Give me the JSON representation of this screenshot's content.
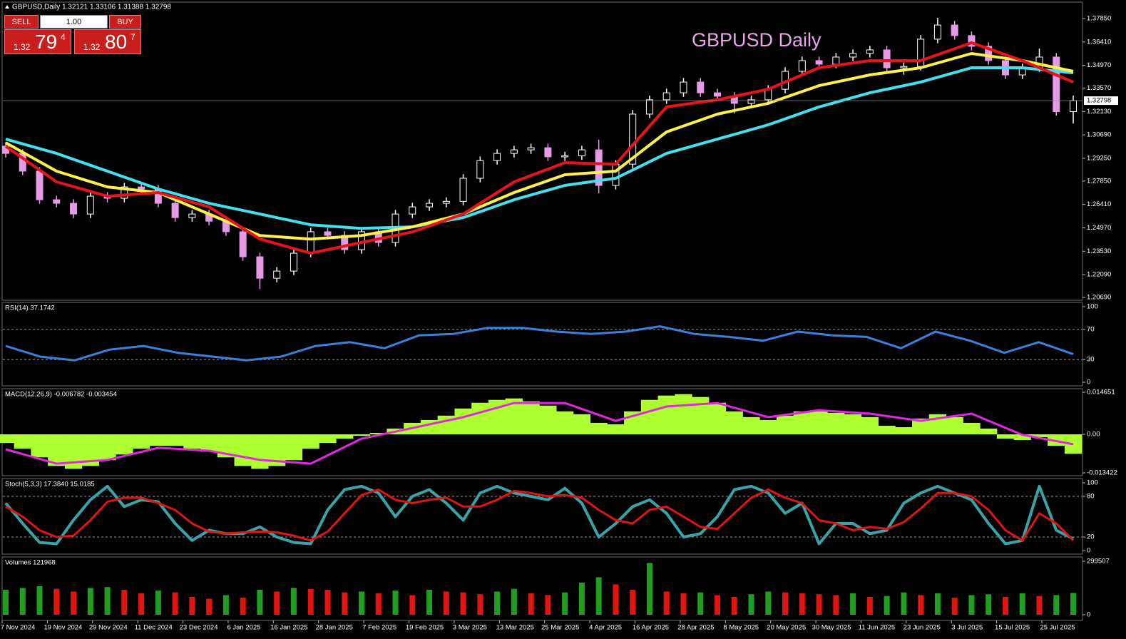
{
  "trade_panel": {
    "sell": "SELL",
    "buy": "BUY",
    "lots": "1.00",
    "sell_price": {
      "big": "1.32",
      "main": "79",
      "small": "4"
    },
    "buy_price": {
      "big": "1.32",
      "main": "80",
      "small": "7"
    }
  },
  "time_axis": {
    "labels": [
      "7 Nov 2024",
      "19 Nov 2024",
      "29 Nov 2024",
      "11 Dec 2024",
      "23 Dec 2024",
      "6 Jan 2025",
      "16 Jan 2025",
      "28 Jan 2025",
      "7 Feb 2025",
      "19 Feb 2025",
      "3 Mar 2025",
      "13 Mar 2025",
      "25 Mar 2025",
      "4 Apr 2025",
      "16 Apr 2025",
      "28 Apr 2025",
      "8 May 2025",
      "20 May 2025",
      "30 May 2025",
      "11 Jun 2025",
      "23 Jun 2025",
      "3 Jul 2025",
      "15 Jul 2025",
      "25 Jul 2025"
    ]
  },
  "chart_data": [
    {
      "type": "candlestick",
      "title": "GBPUSD,Daily  1.32121 1.33106 1.31388 1.32798",
      "annotation": "GBPUSD Daily",
      "up_color": "#ffffff",
      "down_color": "#e59be5",
      "open": [
        1.3,
        1.2955,
        1.2846,
        1.267,
        1.2648,
        1.2582,
        1.2692,
        1.2679,
        1.2749,
        1.2736,
        1.2648,
        1.256,
        1.2582,
        1.2538,
        1.2473,
        1.2319,
        1.2187,
        1.2231,
        1.2341,
        1.2473,
        1.2451,
        1.2363,
        1.2473,
        1.2407,
        1.2582,
        1.2626,
        1.2648,
        1.266,
        1.2802,
        1.2911,
        1.2955,
        1.2977,
        1.299,
        1.2934,
        1.294,
        1.2977,
        1.2758,
        1.2889,
        1.3197,
        1.3285,
        1.3328,
        1.3394,
        1.3328,
        1.3307,
        1.3263,
        1.3285,
        1.335,
        1.346,
        1.3526,
        1.3504,
        1.3548,
        1.357,
        1.3592,
        1.3482,
        1.349,
        1.3658,
        1.3745,
        1.368,
        1.3614,
        1.3526,
        1.3438,
        1.3482,
        1.3548,
        1.32121
      ],
      "high": [
        1.3025,
        1.298,
        1.2871,
        1.2695,
        1.2673,
        1.2717,
        1.2717,
        1.2774,
        1.2774,
        1.2761,
        1.2673,
        1.2607,
        1.2607,
        1.2563,
        1.2498,
        1.2344,
        1.2256,
        1.2366,
        1.2498,
        1.2498,
        1.2476,
        1.2498,
        1.2498,
        1.2607,
        1.2651,
        1.2673,
        1.2685,
        1.2827,
        1.2936,
        1.298,
        1.3002,
        1.3015,
        1.3015,
        1.2965,
        1.3002,
        1.304,
        1.2914,
        1.3222,
        1.331,
        1.3353,
        1.3419,
        1.3419,
        1.3353,
        1.3332,
        1.331,
        1.3375,
        1.3485,
        1.3551,
        1.3551,
        1.3573,
        1.3595,
        1.3617,
        1.3617,
        1.3515,
        1.3683,
        1.379,
        1.377,
        1.3705,
        1.3639,
        1.3551,
        1.3507,
        1.36,
        1.3573,
        1.33106
      ],
      "low": [
        1.293,
        1.2821,
        1.2645,
        1.2623,
        1.2557,
        1.2557,
        1.2654,
        1.2654,
        1.2711,
        1.2623,
        1.2535,
        1.2535,
        1.2513,
        1.2448,
        1.2294,
        1.212,
        1.2162,
        1.2206,
        1.2316,
        1.2426,
        1.2338,
        1.2338,
        1.2382,
        1.2382,
        1.2557,
        1.2601,
        1.2623,
        1.2635,
        1.2777,
        1.2886,
        1.293,
        1.2952,
        1.2909,
        1.2909,
        1.2915,
        1.271,
        1.2733,
        1.2864,
        1.3172,
        1.326,
        1.3303,
        1.3303,
        1.3282,
        1.32,
        1.3238,
        1.326,
        1.3325,
        1.3435,
        1.3479,
        1.3479,
        1.3523,
        1.3545,
        1.3457,
        1.344,
        1.3465,
        1.3633,
        1.3655,
        1.3589,
        1.3501,
        1.3413,
        1.3413,
        1.3457,
        1.3187,
        1.31388
      ],
      "close": [
        1.2955,
        1.2846,
        1.267,
        1.2648,
        1.2582,
        1.2692,
        1.2679,
        1.2749,
        1.2736,
        1.2648,
        1.256,
        1.2582,
        1.2538,
        1.2473,
        1.2319,
        1.2187,
        1.2231,
        1.2341,
        1.2473,
        1.2451,
        1.2363,
        1.2473,
        1.2407,
        1.2582,
        1.2626,
        1.2648,
        1.266,
        1.2802,
        1.2911,
        1.2955,
        1.2977,
        1.299,
        1.2934,
        1.294,
        1.2977,
        1.2758,
        1.2889,
        1.3197,
        1.3285,
        1.3328,
        1.3394,
        1.3328,
        1.3307,
        1.3263,
        1.3285,
        1.335,
        1.346,
        1.3526,
        1.3504,
        1.3548,
        1.357,
        1.3592,
        1.3482,
        1.349,
        1.3658,
        1.3745,
        1.368,
        1.3614,
        1.3526,
        1.3438,
        1.3482,
        1.3548,
        1.32121,
        1.32798
      ],
      "moving_averages": [
        {
          "color": "#43e0f0",
          "values": [
            1.3043,
            1.2955,
            1.2846,
            1.2736,
            1.2648,
            1.2582,
            1.2516,
            1.2494,
            1.2503,
            1.256,
            1.267,
            1.2758,
            1.2802,
            1.2955,
            1.3043,
            1.3131,
            1.3241,
            1.3328,
            1.3394,
            1.3482,
            1.3482,
            1.3451
          ]
        },
        {
          "color": "#fff04a",
          "values": [
            1.3021,
            1.2846,
            1.2749,
            1.2714,
            1.2582,
            1.245,
            1.2428,
            1.245,
            1.2503,
            1.2582,
            1.2714,
            1.2824,
            1.2846,
            1.3087,
            1.3197,
            1.3263,
            1.3372,
            1.3438,
            1.3482,
            1.357,
            1.3526,
            1.346
          ]
        },
        {
          "color": "#e8121a",
          "values": [
            1.2999,
            1.278,
            1.2692,
            1.2714,
            1.2626,
            1.2428,
            1.2341,
            1.2407,
            1.2472,
            1.2582,
            1.278,
            1.2898,
            1.2889,
            1.3241,
            1.3285,
            1.335,
            1.3482,
            1.3526,
            1.3526,
            1.3636,
            1.3526,
            1.3394
          ]
        }
      ],
      "current_price": 1.32798,
      "ylim": [
        1.2056,
        1.3877
      ],
      "yticks": [
        {
          "value": 1.3785,
          "label": "1.37850"
        },
        {
          "value": 1.3641,
          "label": "1.36410"
        },
        {
          "value": 1.3497,
          "label": "1.34970"
        },
        {
          "value": 1.3357,
          "label": "1.33570"
        },
        {
          "value": 1.3213,
          "label": "1.32130"
        },
        {
          "value": 1.3069,
          "label": "1.30690"
        },
        {
          "value": 1.2925,
          "label": "1.29250"
        },
        {
          "value": 1.2785,
          "label": "1.27850"
        },
        {
          "value": 1.2641,
          "label": "1.26410"
        },
        {
          "value": 1.2497,
          "label": "1.24970"
        },
        {
          "value": 1.2353,
          "label": "1.23530"
        },
        {
          "value": 1.2209,
          "label": "1.22090"
        },
        {
          "value": 1.2069,
          "label": "1.20690"
        }
      ]
    },
    {
      "type": "line",
      "title": "RSI(14) 37.1742",
      "series": [
        {
          "color": "#3b80dc",
          "width": 3,
          "values": [
            48,
            34,
            29,
            43,
            48,
            39,
            34,
            29,
            34,
            48,
            53,
            45,
            62,
            64,
            72,
            72,
            67,
            64,
            67,
            74,
            64,
            60,
            55,
            67,
            62,
            60,
            45,
            67,
            55,
            39,
            53,
            37.2
          ]
        }
      ],
      "levels": [
        70,
        30
      ],
      "ylim": [
        0,
        100
      ],
      "yticks": [
        100,
        70,
        30,
        0
      ]
    },
    {
      "type": "macd",
      "title": "MACD(12,26,9) -0.006782 -0.003454",
      "histogram": {
        "color": "#adff2f",
        "values": [
          -0.003,
          -0.005,
          -0.008,
          -0.011,
          -0.012,
          -0.011,
          -0.009,
          -0.007,
          -0.005,
          -0.004,
          -0.004,
          -0.005,
          -0.006,
          -0.008,
          -0.011,
          -0.012,
          -0.011,
          -0.009,
          -0.005,
          -0.003,
          -0.0015,
          -0.0005,
          0.0005,
          0.002,
          0.004,
          0.005,
          0.0065,
          0.009,
          0.011,
          0.012,
          0.0125,
          0.0115,
          0.01,
          0.008,
          0.007,
          0.004,
          0.0035,
          0.008,
          0.012,
          0.0135,
          0.014,
          0.013,
          0.011,
          0.008,
          0.006,
          0.005,
          0.0065,
          0.008,
          0.008,
          0.0075,
          0.007,
          0.006,
          0.003,
          0.0025,
          0.0055,
          0.007,
          0.006,
          0.004,
          0.002,
          -0.0015,
          -0.002,
          -0.001,
          -0.004,
          -0.006782
        ]
      },
      "signal": {
        "color": "#e326e3",
        "values": [
          -0.0052,
          -0.0102,
          -0.0089,
          -0.0047,
          -0.0057,
          -0.0089,
          -0.0102,
          -0.0015,
          0.0022,
          0.006,
          0.0109,
          0.0109,
          0.0047,
          0.0097,
          0.0109,
          0.006,
          0.0084,
          0.0072,
          0.0047,
          0.0072,
          -0.0002,
          -0.003454
        ]
      },
      "ylim": [
        -0.0144,
        0.0159
      ],
      "yticks": [
        0.014651,
        {
          "value": 0,
          "label": "0.00"
        },
        -0.013422
      ]
    },
    {
      "type": "line",
      "title": "Stoch(5,3,3) 17.3840 15.0185",
      "series": [
        {
          "color": "#3aa3a8",
          "width": 4,
          "values": [
            70,
            40,
            12,
            10,
            45,
            75,
            95,
            65,
            75,
            72,
            40,
            15,
            30,
            25,
            25,
            35,
            20,
            12,
            10,
            60,
            90,
            95,
            85,
            50,
            80,
            90,
            70,
            45,
            85,
            95,
            85,
            80,
            75,
            92,
            70,
            20,
            40,
            65,
            75,
            55,
            20,
            25,
            50,
            90,
            95,
            85,
            55,
            70,
            10,
            40,
            40,
            25,
            30,
            70,
            85,
            95,
            85,
            75,
            40,
            10,
            15,
            95,
            30,
            17.384
          ]
        },
        {
          "color": "#e01414",
          "width": 3,
          "values": [
            65,
            50,
            30,
            20,
            22,
            45,
            72,
            78,
            78,
            70,
            60,
            40,
            28,
            25,
            27,
            28,
            27,
            22,
            15,
            28,
            55,
            82,
            90,
            75,
            70,
            75,
            78,
            65,
            65,
            75,
            88,
            85,
            80,
            82,
            78,
            60,
            45,
            40,
            60,
            65,
            50,
            35,
            32,
            55,
            78,
            90,
            78,
            70,
            45,
            40,
            30,
            35,
            32,
            42,
            62,
            85,
            85,
            80,
            60,
            30,
            15,
            55,
            40,
            15.0185
          ]
        }
      ],
      "levels": [
        80,
        20
      ],
      "ylim": [
        0,
        100
      ],
      "yticks": [
        100,
        80,
        20,
        0
      ]
    },
    {
      "type": "bar",
      "title": "Volumes 121968",
      "up_color": "#1f9e1f",
      "down_color": "#e2140f",
      "values": [
        140000,
        150000,
        160000,
        145000,
        130000,
        150000,
        155000,
        140000,
        120000,
        135000,
        125000,
        100000,
        90000,
        110000,
        95000,
        140000,
        130000,
        150000,
        145000,
        140000,
        125000,
        130000,
        120000,
        135000,
        110000,
        140000,
        130000,
        125000,
        115000,
        130000,
        145000,
        120000,
        110000,
        125000,
        180000,
        210000,
        170000,
        140000,
        290000,
        130000,
        120000,
        125000,
        110000,
        100000,
        115000,
        130000,
        125000,
        120000,
        115000,
        110000,
        120000,
        100000,
        105000,
        125000,
        110000,
        120000,
        95000,
        110000,
        115000,
        100000,
        120000,
        105000,
        110000,
        121968
      ],
      "ylim": [
        0,
        299507
      ],
      "yticks": [
        299507,
        0
      ]
    }
  ]
}
